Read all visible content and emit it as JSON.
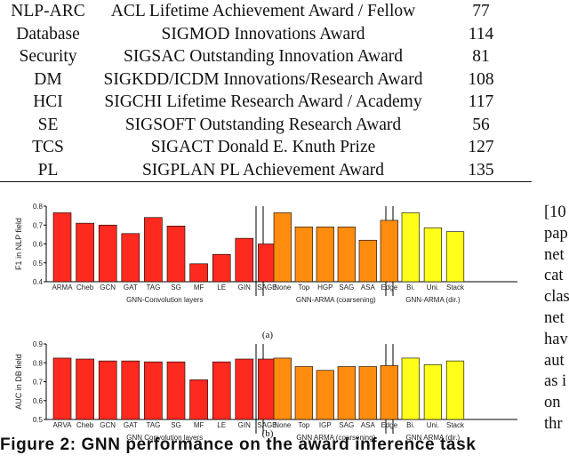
{
  "table": {
    "rows": [
      {
        "area": "NLP-ARC",
        "award": "ACL Lifetime Achievement Award / Fellow",
        "count": "77"
      },
      {
        "area": "Database",
        "award": "SIGMOD Innovations Award",
        "count": "114"
      },
      {
        "area": "Security",
        "award": "SIGSAC Outstanding Innovation Award",
        "count": "81"
      },
      {
        "area": "DM",
        "award": "SIGKDD/ICDM Innovations/Research Award",
        "count": "108"
      },
      {
        "area": "HCI",
        "award": "SIGCHI Lifetime Research Award / Academy",
        "count": "117"
      },
      {
        "area": "SE",
        "award": "SIGSOFT Outstanding Research Award",
        "count": "56"
      },
      {
        "area": "TCS",
        "award": "SIGACT Donald E. Knuth Prize",
        "count": "127"
      },
      {
        "area": "PL",
        "award": "SIGPLAN PL Achievement Award",
        "count": "135"
      }
    ]
  },
  "chart_data": [
    {
      "type": "bar",
      "panel_label": "(a)",
      "ylabel": "F1 in NLP field",
      "ylim": [
        0.4,
        0.8
      ],
      "yticks": [
        "0.4",
        "0.5",
        "0.6",
        "0.7",
        "0.8"
      ],
      "grid": false,
      "groups": [
        {
          "xlabel": "GNN-Convolution layers",
          "color": "#ff2a1f",
          "categories": [
            "ARMA",
            "Cheb",
            "GCN",
            "GAT",
            "TAG",
            "SG",
            "MF",
            "LE",
            "GIN",
            "SAGE"
          ],
          "values": [
            0.765,
            0.71,
            0.7,
            0.655,
            0.74,
            0.695,
            0.495,
            0.545,
            0.63,
            0.6
          ]
        },
        {
          "xlabel": "GNN-ARMA (coarsening)",
          "color": "#ff8c0f",
          "categories": [
            "None",
            "Top",
            "HGP",
            "SAG",
            "ASA",
            "Edge"
          ],
          "values": [
            0.765,
            0.69,
            0.69,
            0.69,
            0.62,
            0.725
          ]
        },
        {
          "xlabel": "GNN-ARMA (dir.)",
          "color": "#ffff1a",
          "categories": [
            "Bi.",
            "Uni.",
            "Stack"
          ],
          "values": [
            0.765,
            0.685,
            0.665
          ]
        }
      ]
    },
    {
      "type": "bar",
      "panel_label": "(b)",
      "ylabel": "AUC in DB field",
      "ylim": [
        0.5,
        0.9
      ],
      "yticks": [
        "0.5",
        "0.6",
        "0.7",
        "0.8",
        "0.9"
      ],
      "grid": false,
      "groups": [
        {
          "xlabel": "GNN Convolution layers",
          "color": "#ff2a1f",
          "categories": [
            "ARVA",
            "Cheb",
            "GCN",
            "GAT",
            "TAG",
            "SG",
            "MF",
            "LE",
            "GIN",
            "SAGE"
          ],
          "values": [
            0.825,
            0.82,
            0.81,
            0.81,
            0.805,
            0.805,
            0.71,
            0.805,
            0.82,
            0.82
          ]
        },
        {
          "xlabel": "GNN ARMA (coarsening)",
          "color": "#ff8c0f",
          "categories": [
            "None",
            "Top",
            "IGP",
            "SAG",
            "ASA",
            "Edge"
          ],
          "values": [
            0.825,
            0.78,
            0.76,
            0.78,
            0.78,
            0.785
          ]
        },
        {
          "xlabel": "GNN ARMA (dir.)",
          "color": "#ffff1a",
          "categories": [
            "Bi.",
            "Uni.",
            "Stack"
          ],
          "values": [
            0.825,
            0.79,
            0.81
          ]
        }
      ]
    }
  ],
  "caption": "Figure 2: GNN performance on the award inference task",
  "side_text": [
    "[10",
    "pap",
    "net",
    "cat",
    "clas",
    "net",
    "hav",
    "aut",
    "as i",
    "on",
    "thr"
  ]
}
